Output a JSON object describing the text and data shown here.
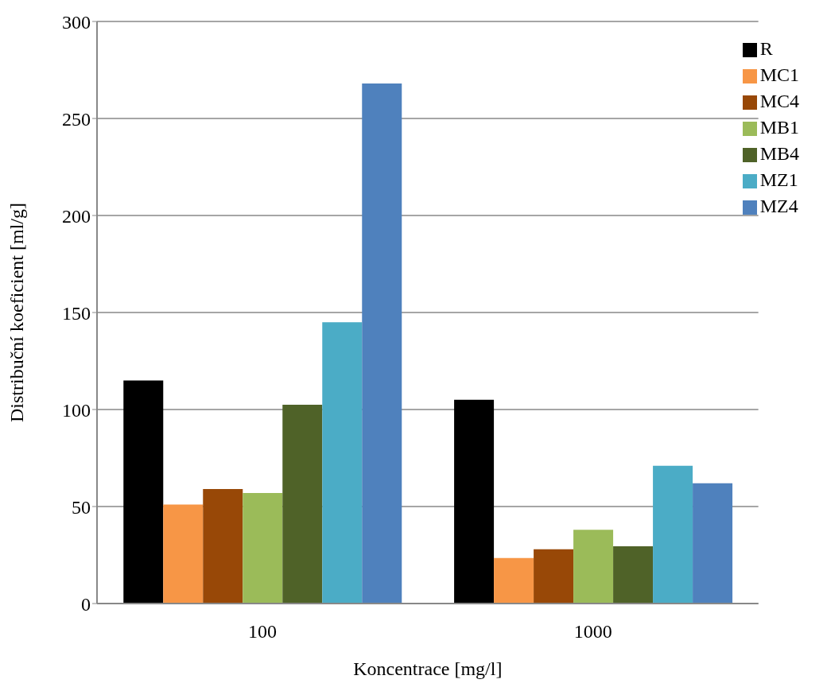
{
  "chart_data": {
    "type": "bar",
    "xlabel": "Koncentrace [mg/l]",
    "ylabel": "Distribuční koeficient [ml/g]",
    "categories": [
      "100",
      "1000"
    ],
    "series": [
      {
        "name": "R",
        "color": "#000000",
        "values": [
          115,
          105
        ]
      },
      {
        "name": "MC1",
        "color": "#f79646",
        "values": [
          51,
          23.5
        ]
      },
      {
        "name": "MC4",
        "color": "#984807",
        "values": [
          59,
          28
        ]
      },
      {
        "name": "MB1",
        "color": "#9bbb59",
        "values": [
          57,
          38
        ]
      },
      {
        "name": "MB4",
        "color": "#4f6228",
        "values": [
          102.5,
          29.5
        ]
      },
      {
        "name": "MZ1",
        "color": "#4bacc6",
        "values": [
          145,
          71
        ]
      },
      {
        "name": "MZ4",
        "color": "#4f81bd",
        "values": [
          268,
          62
        ]
      }
    ],
    "ylim": [
      0,
      300
    ],
    "yticks": [
      0,
      50,
      100,
      150,
      200,
      250,
      300
    ],
    "grid": "y",
    "legend": "top right"
  }
}
